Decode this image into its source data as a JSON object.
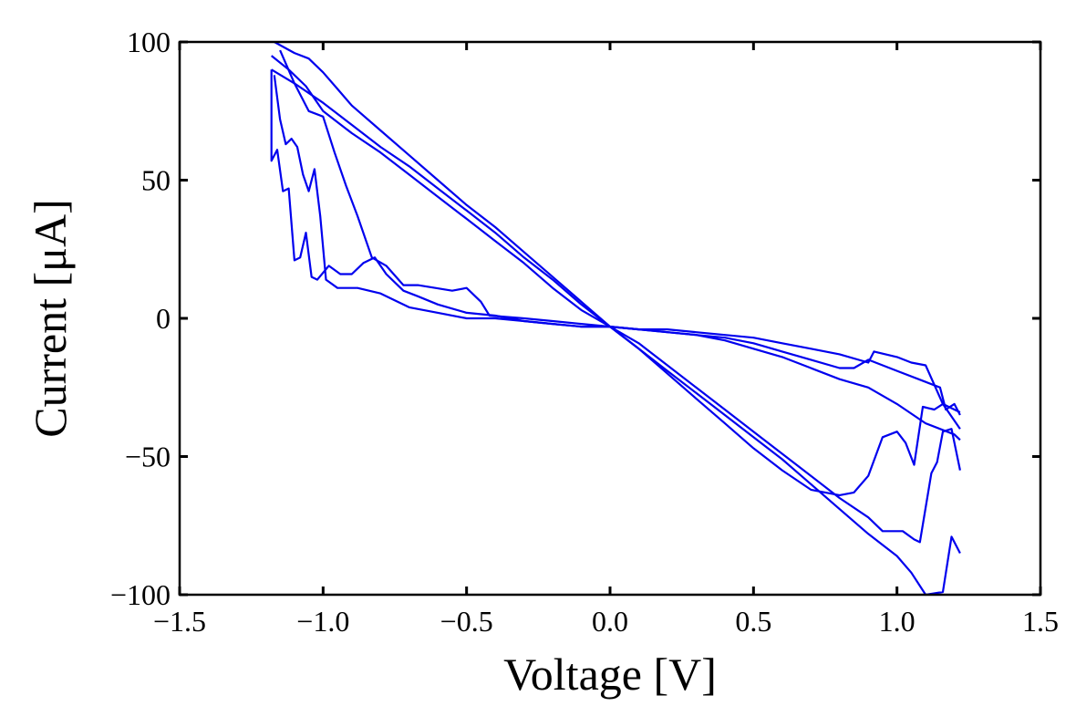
{
  "chart_data": {
    "type": "line",
    "title": "",
    "xlabel": "Voltage [V]",
    "ylabel": "Current [μA]",
    "xlim": [
      -1.5,
      1.5
    ],
    "ylim": [
      -100,
      100
    ],
    "xticks": [
      -1.5,
      -1.0,
      -0.5,
      0.0,
      0.5,
      1.0,
      1.5
    ],
    "xtick_labels": [
      "−1.5",
      "−1.0",
      "−0.5",
      "0.0",
      "0.5",
      "1.0",
      "1.5"
    ],
    "yticks": [
      -100,
      -50,
      0,
      50,
      100
    ],
    "ytick_labels": [
      "−100",
      "−50",
      "0",
      "50",
      "100"
    ],
    "grid": false,
    "line_color": "#0000ee",
    "series": [
      {
        "points": [
          [
            -1.18,
            90
          ],
          [
            -1.1,
            85
          ],
          [
            -1.0,
            78
          ],
          [
            -0.9,
            70
          ],
          [
            -0.8,
            62
          ],
          [
            -0.7,
            55
          ],
          [
            -0.6,
            47
          ],
          [
            -0.5,
            39
          ],
          [
            -0.4,
            31
          ],
          [
            -0.3,
            22
          ],
          [
            -0.2,
            14
          ],
          [
            -0.1,
            5
          ],
          [
            0.0,
            -3
          ],
          [
            0.1,
            -11
          ],
          [
            0.2,
            -19
          ],
          [
            0.3,
            -27
          ],
          [
            0.4,
            -35
          ],
          [
            0.5,
            -43
          ],
          [
            0.6,
            -51
          ],
          [
            0.7,
            -60
          ],
          [
            0.8,
            -69
          ],
          [
            0.9,
            -78
          ],
          [
            1.0,
            -86
          ],
          [
            1.05,
            -92
          ],
          [
            1.1,
            -100
          ],
          [
            1.16,
            -99
          ],
          [
            1.19,
            -79
          ],
          [
            1.22,
            -85
          ]
        ]
      },
      {
        "points": [
          [
            -1.17,
            100
          ],
          [
            -1.1,
            96
          ],
          [
            -1.05,
            94
          ],
          [
            -1.0,
            89
          ],
          [
            -0.95,
            83
          ],
          [
            -0.9,
            77
          ],
          [
            -0.8,
            68
          ],
          [
            -0.7,
            59
          ],
          [
            -0.6,
            50
          ],
          [
            -0.5,
            41
          ],
          [
            -0.4,
            33
          ],
          [
            -0.3,
            24
          ],
          [
            -0.2,
            15
          ],
          [
            -0.1,
            6
          ],
          [
            0.0,
            -3
          ],
          [
            0.1,
            -11
          ],
          [
            0.2,
            -20
          ],
          [
            0.3,
            -29
          ],
          [
            0.4,
            -38
          ],
          [
            0.5,
            -47
          ],
          [
            0.6,
            -55
          ],
          [
            0.7,
            -62
          ],
          [
            0.8,
            -64
          ],
          [
            0.85,
            -63
          ],
          [
            0.9,
            -57
          ],
          [
            0.95,
            -43
          ],
          [
            1.0,
            -41
          ],
          [
            1.03,
            -45
          ],
          [
            1.06,
            -53
          ],
          [
            1.09,
            -32
          ],
          [
            1.13,
            -33
          ],
          [
            1.16,
            -31
          ],
          [
            1.2,
            -37
          ],
          [
            1.22,
            -40
          ]
        ]
      },
      {
        "points": [
          [
            -1.18,
            95
          ],
          [
            -1.12,
            90
          ],
          [
            -1.06,
            84
          ],
          [
            -1.0,
            75
          ],
          [
            -0.9,
            67
          ],
          [
            -0.8,
            60
          ],
          [
            -0.7,
            52
          ],
          [
            -0.6,
            44
          ],
          [
            -0.5,
            36
          ],
          [
            -0.4,
            28
          ],
          [
            -0.3,
            20
          ],
          [
            -0.2,
            11
          ],
          [
            -0.1,
            3
          ],
          [
            0.0,
            -3
          ],
          [
            0.1,
            -9
          ],
          [
            0.2,
            -17
          ],
          [
            0.3,
            -25
          ],
          [
            0.4,
            -33
          ],
          [
            0.5,
            -41
          ],
          [
            0.6,
            -49
          ],
          [
            0.7,
            -57
          ],
          [
            0.8,
            -65
          ],
          [
            0.9,
            -72
          ],
          [
            0.95,
            -77
          ],
          [
            1.02,
            -77
          ],
          [
            1.06,
            -80
          ],
          [
            1.08,
            -81
          ],
          [
            1.12,
            -56
          ],
          [
            1.14,
            -52
          ],
          [
            1.16,
            -41
          ],
          [
            1.19,
            -40
          ],
          [
            1.22,
            -55
          ]
        ]
      },
      {
        "points": [
          [
            -1.15,
            97
          ],
          [
            -1.1,
            85
          ],
          [
            -1.05,
            75
          ],
          [
            -1.0,
            73
          ],
          [
            -0.96,
            60
          ],
          [
            -0.92,
            48
          ],
          [
            -0.88,
            37
          ],
          [
            -0.83,
            22
          ],
          [
            -0.78,
            19
          ],
          [
            -0.72,
            12
          ],
          [
            -0.67,
            12
          ],
          [
            -0.55,
            10
          ],
          [
            -0.5,
            11
          ],
          [
            -0.45,
            6
          ],
          [
            -0.42,
            1
          ],
          [
            -0.3,
            0
          ],
          [
            -0.2,
            -1
          ],
          [
            -0.1,
            -2
          ],
          [
            0.0,
            -3
          ],
          [
            0.1,
            -4
          ],
          [
            0.2,
            -4
          ],
          [
            0.3,
            -5
          ],
          [
            0.4,
            -6
          ],
          [
            0.5,
            -7
          ],
          [
            0.6,
            -9
          ],
          [
            0.7,
            -11
          ],
          [
            0.8,
            -13
          ],
          [
            0.9,
            -16
          ],
          [
            0.92,
            -12
          ],
          [
            1.0,
            -14
          ],
          [
            1.05,
            -16
          ],
          [
            1.1,
            -17
          ],
          [
            1.16,
            -31
          ],
          [
            1.2,
            -33
          ],
          [
            1.22,
            -34
          ]
        ]
      },
      {
        "points": [
          [
            -1.18,
            90
          ],
          [
            -1.18,
            57
          ],
          [
            -1.16,
            61
          ],
          [
            -1.14,
            46
          ],
          [
            -1.12,
            47
          ],
          [
            -1.1,
            21
          ],
          [
            -1.08,
            22
          ],
          [
            -1.06,
            31
          ],
          [
            -1.04,
            15
          ],
          [
            -1.02,
            14
          ],
          [
            -0.98,
            19
          ],
          [
            -0.94,
            16
          ],
          [
            -0.9,
            16
          ],
          [
            -0.86,
            20
          ],
          [
            -0.82,
            22
          ],
          [
            -0.78,
            16
          ],
          [
            -0.72,
            10
          ],
          [
            -0.67,
            8
          ],
          [
            -0.6,
            5
          ],
          [
            -0.5,
            2
          ],
          [
            -0.4,
            1
          ],
          [
            -0.3,
            -1
          ],
          [
            -0.2,
            -2
          ],
          [
            -0.1,
            -3
          ],
          [
            0.0,
            -3
          ],
          [
            0.1,
            -4
          ],
          [
            0.2,
            -5
          ],
          [
            0.3,
            -6
          ],
          [
            0.4,
            -8
          ],
          [
            0.5,
            -11
          ],
          [
            0.6,
            -14
          ],
          [
            0.7,
            -18
          ],
          [
            0.8,
            -22
          ],
          [
            0.9,
            -25
          ],
          [
            1.0,
            -31
          ],
          [
            1.1,
            -38
          ],
          [
            1.2,
            -42
          ],
          [
            1.22,
            -44
          ]
        ]
      },
      {
        "points": [
          [
            -1.17,
            88
          ],
          [
            -1.15,
            72
          ],
          [
            -1.13,
            63
          ],
          [
            -1.11,
            65
          ],
          [
            -1.09,
            62
          ],
          [
            -1.07,
            52
          ],
          [
            -1.05,
            46
          ],
          [
            -1.03,
            54
          ],
          [
            -1.01,
            37
          ],
          [
            -0.99,
            14
          ],
          [
            -0.95,
            11
          ],
          [
            -0.88,
            11
          ],
          [
            -0.8,
            9
          ],
          [
            -0.7,
            4
          ],
          [
            -0.6,
            2
          ],
          [
            -0.5,
            0
          ],
          [
            -0.4,
            0
          ],
          [
            -0.3,
            -1
          ],
          [
            -0.2,
            -2
          ],
          [
            -0.1,
            -3
          ],
          [
            0.0,
            -3
          ],
          [
            0.1,
            -4
          ],
          [
            0.2,
            -5
          ],
          [
            0.3,
            -6
          ],
          [
            0.4,
            -7
          ],
          [
            0.5,
            -9
          ],
          [
            0.6,
            -12
          ],
          [
            0.7,
            -15
          ],
          [
            0.8,
            -18
          ],
          [
            0.85,
            -18
          ],
          [
            0.9,
            -15
          ],
          [
            1.0,
            -19
          ],
          [
            1.1,
            -23
          ],
          [
            1.15,
            -25
          ],
          [
            1.17,
            -33
          ],
          [
            1.2,
            -31
          ],
          [
            1.22,
            -35
          ]
        ]
      }
    ]
  }
}
